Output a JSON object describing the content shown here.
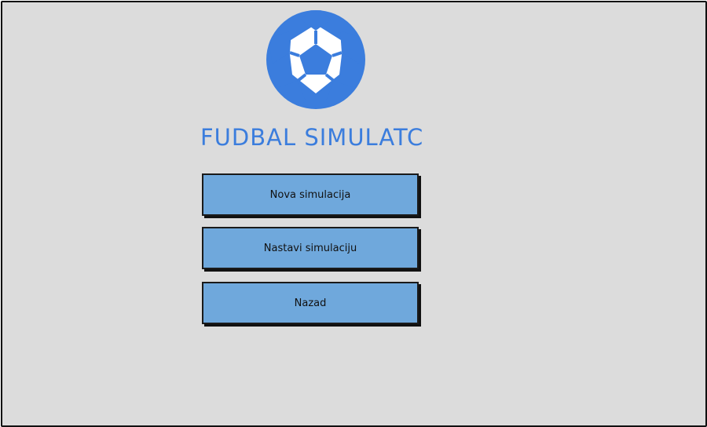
{
  "app": {
    "title": "FUDBAL SIMULATC",
    "logo_icon": "soccer-ball-icon",
    "accent_color": "#3b7ddd"
  },
  "menu": {
    "new_simulation": "Nova simulacija",
    "continue_simulation": "Nastavi simulaciju",
    "back": "Nazad",
    "button_color": "#6fa8dc"
  }
}
